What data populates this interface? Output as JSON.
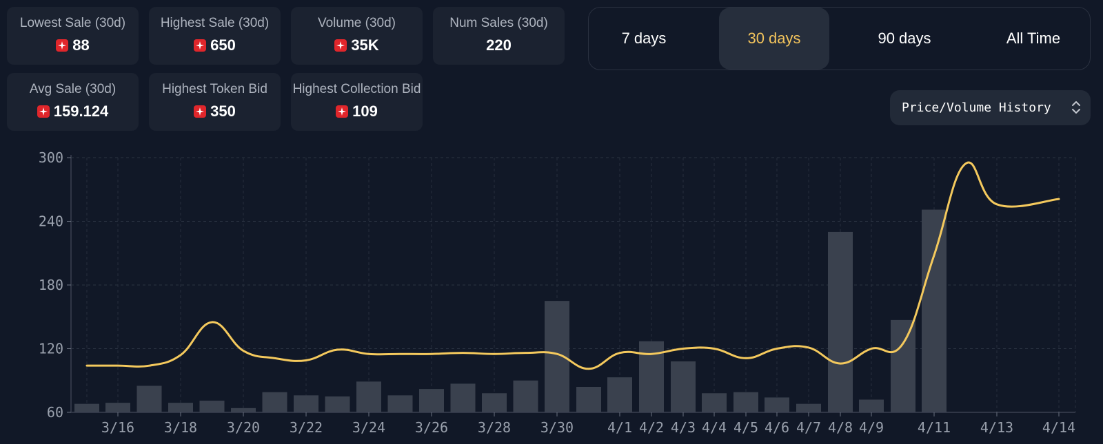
{
  "stats": [
    {
      "label": "Lowest Sale (30d)",
      "value": "88",
      "icon": "token-icon"
    },
    {
      "label": "Highest Sale (30d)",
      "value": "650",
      "icon": "token-icon"
    },
    {
      "label": "Volume (30d)",
      "value": "35K",
      "icon": "token-icon"
    },
    {
      "label": "Num Sales (30d)",
      "value": "220"
    },
    {
      "label": "Avg Sale (30d)",
      "value": "159.124",
      "icon": "token-icon"
    },
    {
      "label": "Highest Token Bid",
      "value": "350",
      "icon": "token-icon"
    },
    {
      "label": "Highest Collection Bid",
      "value": "109",
      "icon": "token-icon"
    }
  ],
  "range_tabs": {
    "items": [
      "7 days",
      "30 days",
      "90 days",
      "All Time"
    ],
    "active": "30 days"
  },
  "chart_select": {
    "label": "Price/Volume History"
  },
  "colors": {
    "background": "#111827",
    "accent": "#f3c45c",
    "line": "#f4c95d",
    "bar": "#3a414e"
  },
  "chart_data": {
    "type": "bar",
    "combined_with": "line",
    "ylim": [
      60,
      300
    ],
    "yticks": [
      60,
      120,
      180,
      240,
      300
    ],
    "grid": true,
    "x_tick_labels": [
      "3/16",
      "3/18",
      "3/20",
      "3/22",
      "3/24",
      "3/26",
      "3/28",
      "3/30",
      "4/1",
      "4/2",
      "4/3",
      "4/4",
      "4/5",
      "4/6",
      "4/7",
      "4/8",
      "4/9",
      "4/11",
      "4/13",
      "4/14"
    ],
    "bars": {
      "dates": [
        "3/15",
        "3/16",
        "3/17",
        "3/18",
        "3/19",
        "3/20",
        "3/21",
        "3/22",
        "3/23",
        "3/24",
        "3/25",
        "3/26",
        "3/27",
        "3/28",
        "3/29",
        "3/30",
        "3/31",
        "4/1",
        "4/2",
        "4/3",
        "4/4",
        "4/5",
        "4/6",
        "4/7",
        "4/8",
        "4/9",
        "4/10",
        "4/11"
      ],
      "values": [
        68,
        69,
        85,
        69,
        71,
        64,
        79,
        76,
        75,
        89,
        76,
        82,
        87,
        78,
        90,
        165,
        84,
        93,
        127,
        108,
        78,
        79,
        74,
        68,
        230,
        72,
        147,
        251
      ]
    },
    "line": {
      "dates": [
        "3/15",
        "3/16",
        "3/17",
        "3/18",
        "3/19",
        "3/20",
        "3/21",
        "3/22",
        "3/23",
        "3/24",
        "3/25",
        "3/26",
        "3/27",
        "3/28",
        "3/29",
        "3/30",
        "3/31",
        "4/1",
        "4/2",
        "4/3",
        "4/4",
        "4/5",
        "4/6",
        "4/7",
        "4/8",
        "4/9",
        "4/10",
        "4/11",
        "4/12",
        "4/13",
        "4/14"
      ],
      "values": [
        104,
        104,
        104,
        114,
        145,
        118,
        111,
        109,
        119,
        115,
        115,
        115,
        116,
        115,
        116,
        115,
        101,
        116,
        115,
        120,
        120,
        111,
        120,
        121,
        106,
        120,
        125,
        208,
        294,
        256,
        261
      ]
    }
  }
}
